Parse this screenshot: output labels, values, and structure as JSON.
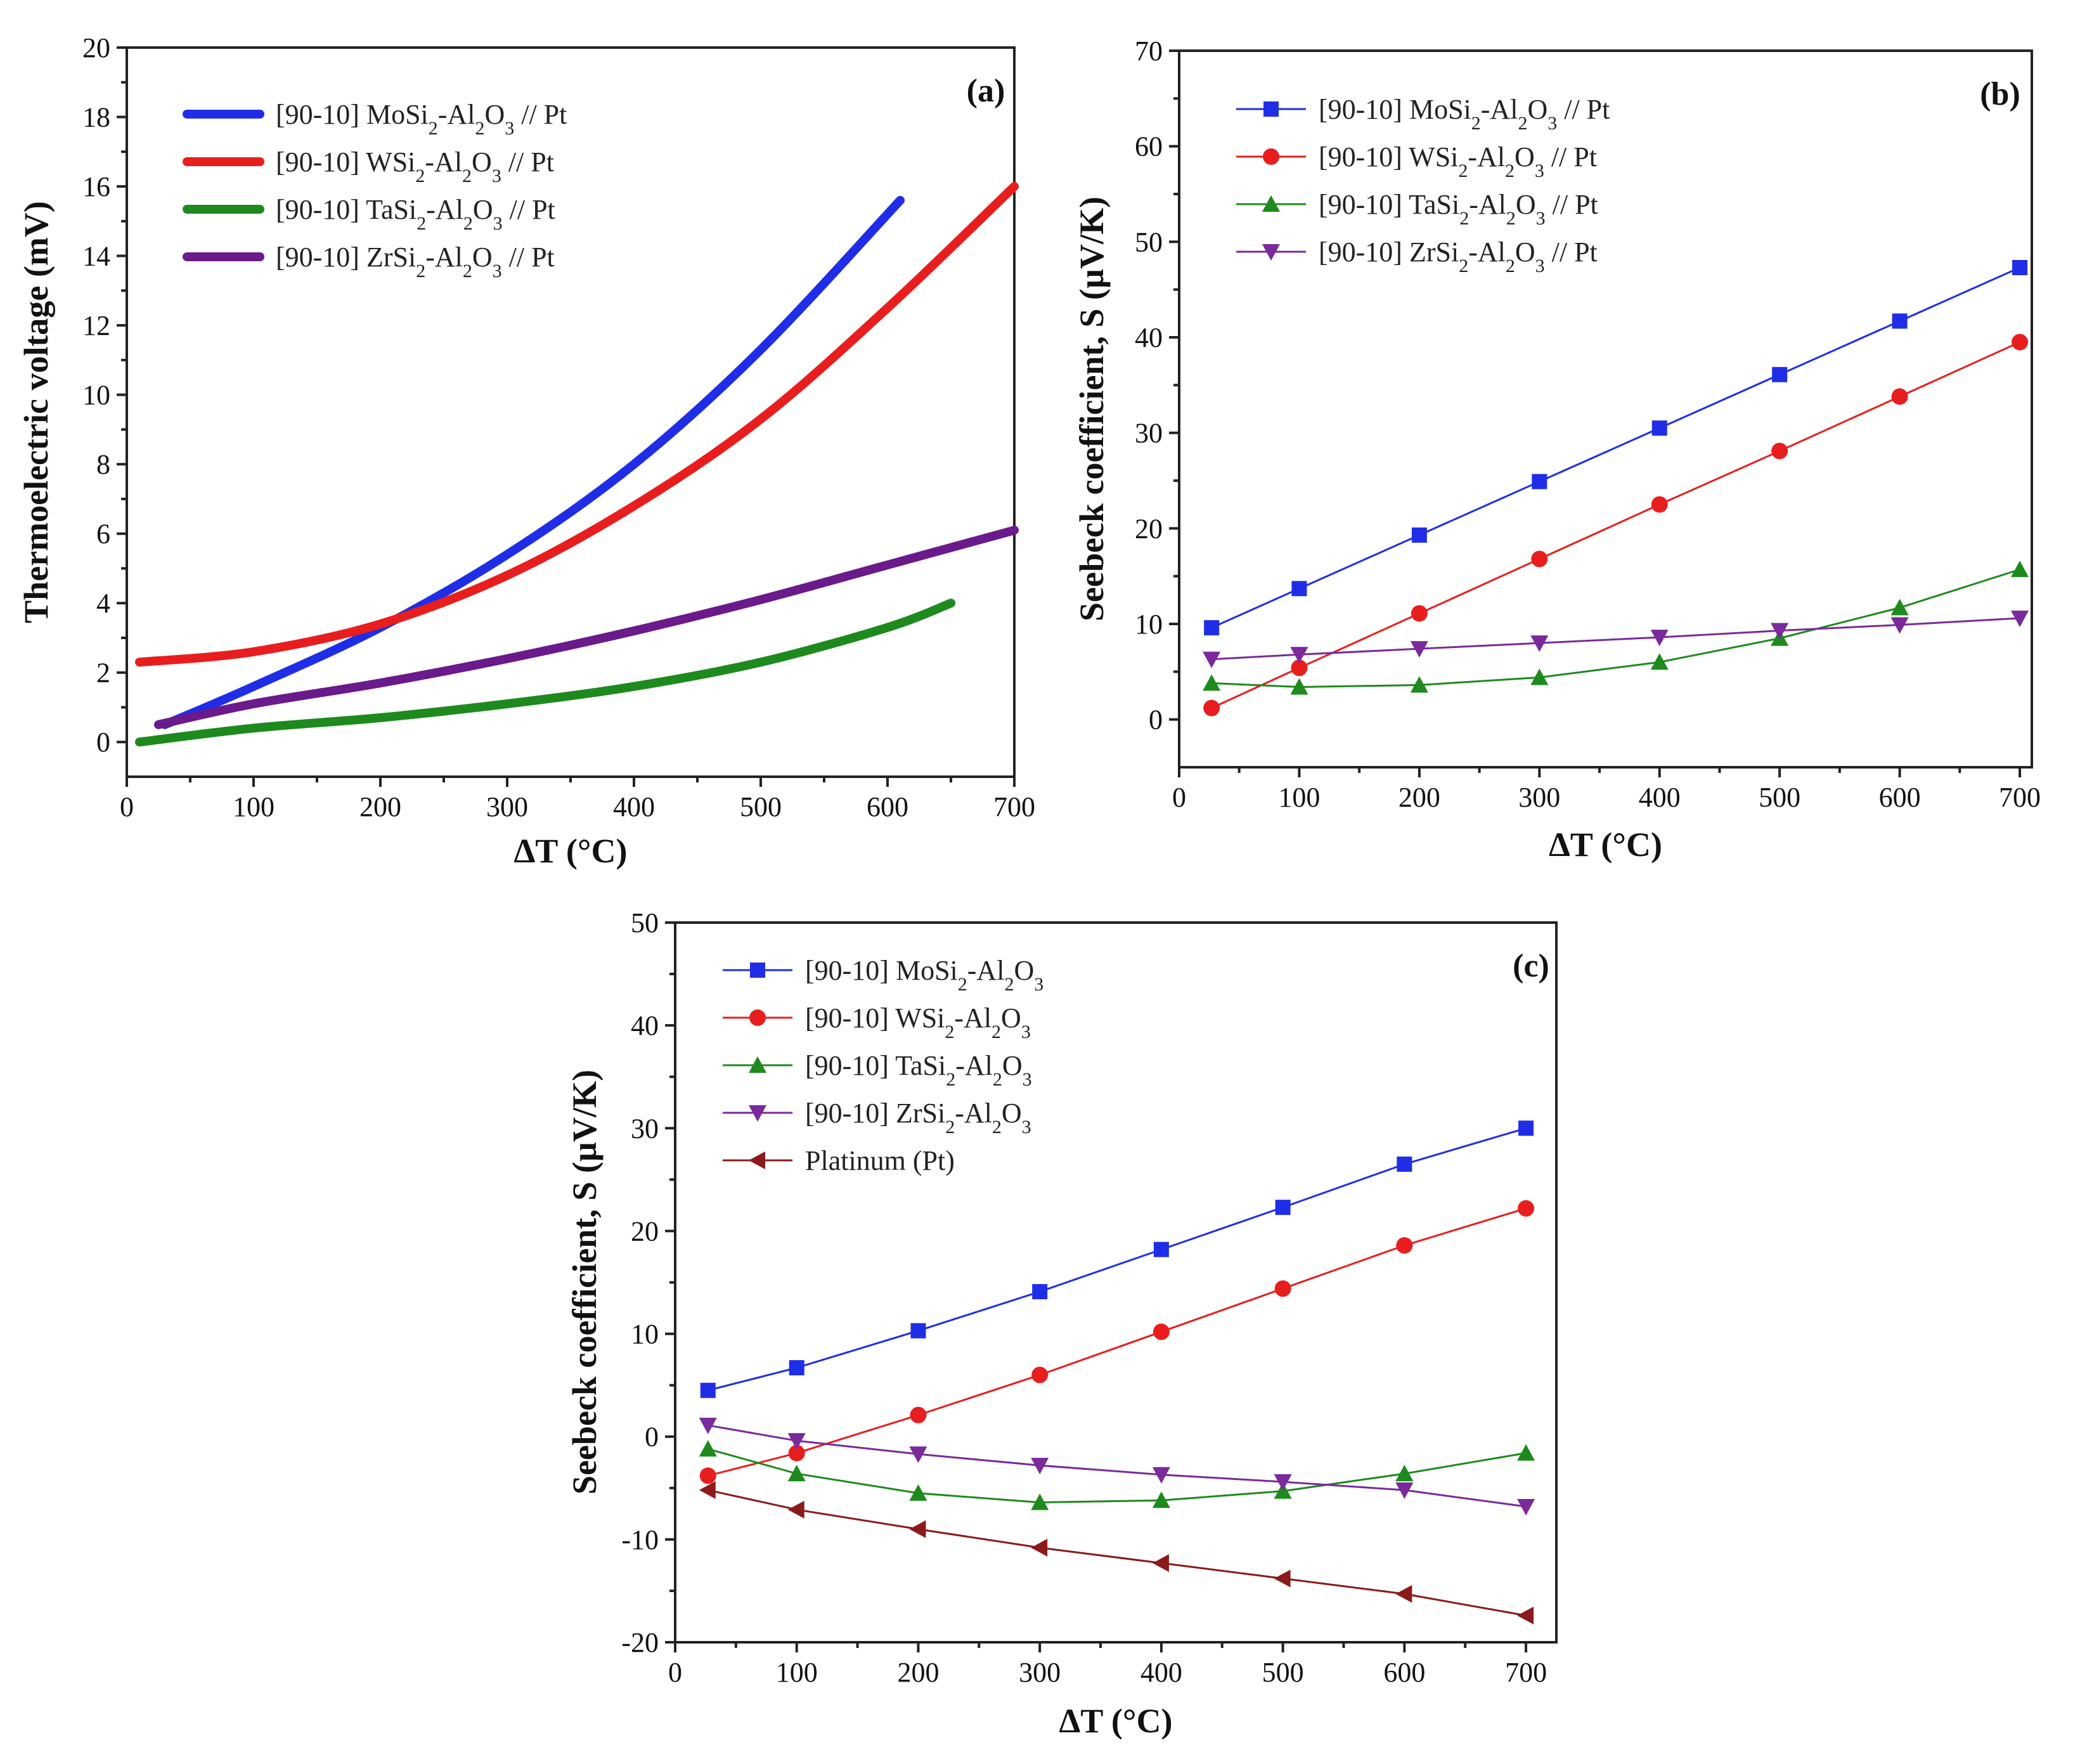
{
  "chart_data": [
    {
      "panel": "(a)",
      "type": "line",
      "xlabel": "ΔT (°C)",
      "ylabel": "Thermoelectric voltage (mV)",
      "xlim": [
        0,
        700
      ],
      "ylim": [
        -1,
        20
      ],
      "xticks": [
        "0",
        "100",
        "200",
        "300",
        "400",
        "500",
        "600",
        "700"
      ],
      "yticks": [
        "0",
        "2",
        "4",
        "6",
        "8",
        "10",
        "12",
        "14",
        "16",
        "18",
        "20"
      ],
      "legend_position": "top-left",
      "series": [
        {
          "name": "[90-10] MoSi2-Al2O3 // Pt",
          "name_parts": [
            [
              "[90-10] MoSi",
              ""
            ],
            [
              "2",
              "sub"
            ],
            [
              "-Al",
              ""
            ],
            [
              "2",
              "sub"
            ],
            [
              "O",
              ""
            ],
            [
              "3",
              "sub"
            ],
            [
              " // Pt",
              ""
            ]
          ],
          "color": "#1f2ee6",
          "x": [
            30,
            100,
            200,
            300,
            400,
            500,
            610
          ],
          "y": [
            0.5,
            1.6,
            3.3,
            5.4,
            8.0,
            11.3,
            15.6
          ]
        },
        {
          "name": "[90-10] WSi2-Al2O3 // Pt",
          "name_parts": [
            [
              "[90-10] WSi",
              ""
            ],
            [
              "2",
              "sub"
            ],
            [
              "-Al",
              ""
            ],
            [
              "2",
              "sub"
            ],
            [
              "O",
              ""
            ],
            [
              "3",
              "sub"
            ],
            [
              "  // Pt",
              ""
            ]
          ],
          "color": "#e81e1e",
          "x": [
            10,
            100,
            200,
            300,
            400,
            500,
            600,
            700
          ],
          "y": [
            2.3,
            2.6,
            3.4,
            4.8,
            6.8,
            9.3,
            12.5,
            16.0
          ]
        },
        {
          "name": "[90-10] TaSi2-Al2O3 // Pt",
          "name_parts": [
            [
              "[90-10] TaSi",
              ""
            ],
            [
              "2",
              "sub"
            ],
            [
              "-Al",
              ""
            ],
            [
              "2",
              "sub"
            ],
            [
              "O",
              ""
            ],
            [
              "3",
              "sub"
            ],
            [
              " // Pt",
              ""
            ]
          ],
          "color": "#1e8a1e",
          "x": [
            10,
            100,
            200,
            300,
            400,
            500,
            600,
            650
          ],
          "y": [
            0.0,
            0.4,
            0.7,
            1.1,
            1.6,
            2.3,
            3.3,
            4.0
          ]
        },
        {
          "name": "[90-10] ZrSi2-Al2O3 // Pt",
          "name_parts": [
            [
              "[90-10] ZrSi",
              ""
            ],
            [
              "2",
              "sub"
            ],
            [
              "-Al",
              ""
            ],
            [
              "2",
              "sub"
            ],
            [
              "O",
              ""
            ],
            [
              "3",
              "sub"
            ],
            [
              " // Pt",
              ""
            ]
          ],
          "color": "#6a1a8a",
          "x": [
            25,
            100,
            200,
            300,
            400,
            500,
            600,
            700
          ],
          "y": [
            0.5,
            1.1,
            1.7,
            2.4,
            3.2,
            4.1,
            5.1,
            6.1
          ]
        }
      ]
    },
    {
      "panel": "(b)",
      "type": "line",
      "xlabel": "ΔT (°C)",
      "ylabel": "Seebeck coefficient, S (µV/K)",
      "xlim": [
        0,
        710
      ],
      "ylim": [
        -5,
        70
      ],
      "xticks": [
        "0",
        "100",
        "200",
        "300",
        "400",
        "500",
        "600",
        "700"
      ],
      "yticks": [
        "0",
        "10",
        "20",
        "30",
        "40",
        "50",
        "60",
        "70"
      ],
      "legend_position": "top-left",
      "series": [
        {
          "name": "[90-10] MoSi2-Al2O3 // Pt",
          "name_parts": [
            [
              "[90-10] MoSi",
              ""
            ],
            [
              "2",
              "sub"
            ],
            [
              "-Al",
              ""
            ],
            [
              "2",
              "sub"
            ],
            [
              "O",
              ""
            ],
            [
              "3",
              "sub"
            ],
            [
              " // Pt",
              ""
            ]
          ],
          "color": "#1f2ee6",
          "marker": "square",
          "x": [
            27,
            100,
            200,
            300,
            400,
            500,
            600,
            700
          ],
          "y": [
            9.6,
            13.7,
            19.3,
            24.9,
            30.5,
            36.1,
            41.7,
            47.3
          ]
        },
        {
          "name": "[90-10] WSi2-Al2O3 // Pt",
          "name_parts": [
            [
              "[90-10] WSi",
              ""
            ],
            [
              "2",
              "sub"
            ],
            [
              "-Al",
              ""
            ],
            [
              "2",
              "sub"
            ],
            [
              "O",
              ""
            ],
            [
              "3",
              "sub"
            ],
            [
              "  // Pt",
              ""
            ]
          ],
          "color": "#e81e1e",
          "marker": "circle",
          "x": [
            27,
            100,
            200,
            300,
            400,
            500,
            600,
            700
          ],
          "y": [
            1.2,
            5.4,
            11.1,
            16.8,
            22.5,
            28.1,
            33.8,
            39.5
          ]
        },
        {
          "name": "[90-10] TaSi2-Al2O3 // Pt",
          "name_parts": [
            [
              "[90-10] TaSi",
              ""
            ],
            [
              "2",
              "sub"
            ],
            [
              "-Al",
              ""
            ],
            [
              "2",
              "sub"
            ],
            [
              "O",
              ""
            ],
            [
              "3",
              "sub"
            ],
            [
              " // Pt",
              ""
            ]
          ],
          "color": "#1e8a1e",
          "marker": "triangle-up",
          "x": [
            27,
            100,
            200,
            300,
            400,
            500,
            600,
            700
          ],
          "y": [
            3.8,
            3.4,
            3.6,
            4.4,
            6.0,
            8.5,
            11.7,
            15.7
          ]
        },
        {
          "name": "[90-10] ZrSi2-Al2O3 // Pt",
          "name_parts": [
            [
              "[90-10] ZrSi",
              ""
            ],
            [
              "2",
              "sub"
            ],
            [
              "-Al",
              ""
            ],
            [
              "2",
              "sub"
            ],
            [
              "O",
              ""
            ],
            [
              "3",
              "sub"
            ],
            [
              " // Pt",
              ""
            ]
          ],
          "color": "#7a2a9a",
          "marker": "triangle-down",
          "x": [
            27,
            100,
            200,
            300,
            400,
            500,
            600,
            700
          ],
          "y": [
            6.3,
            6.8,
            7.4,
            8.0,
            8.6,
            9.3,
            9.9,
            10.6
          ]
        }
      ]
    },
    {
      "panel": "(c)",
      "type": "line",
      "xlabel": "ΔT (°C)",
      "ylabel": "Seebeck coefficient, S (µV/K)",
      "xlim": [
        0,
        725
      ],
      "ylim": [
        -20,
        50
      ],
      "xticks": [
        "0",
        "100",
        "200",
        "300",
        "400",
        "500",
        "600",
        "700"
      ],
      "yticks": [
        "-20",
        "-10",
        "0",
        "10",
        "20",
        "30",
        "40",
        "50"
      ],
      "legend_position": "top-left",
      "series": [
        {
          "name": "[90-10] MoSi2-Al2O3",
          "name_parts": [
            [
              "[90-10] MoSi",
              ""
            ],
            [
              "2",
              "sub"
            ],
            [
              "-Al",
              ""
            ],
            [
              "2",
              "sub"
            ],
            [
              "O",
              ""
            ],
            [
              "3",
              "sub"
            ]
          ],
          "color": "#1f2ee6",
          "marker": "square",
          "x": [
            27,
            100,
            200,
            300,
            400,
            500,
            600,
            700
          ],
          "y": [
            4.5,
            6.7,
            10.3,
            14.1,
            18.2,
            22.3,
            26.5,
            30.0
          ]
        },
        {
          "name": "[90-10] WSi2-Al2O3",
          "name_parts": [
            [
              "[90-10] WSi",
              ""
            ],
            [
              "2",
              "sub"
            ],
            [
              "-Al",
              ""
            ],
            [
              "2",
              "sub"
            ],
            [
              "O",
              ""
            ],
            [
              "3",
              "sub"
            ]
          ],
          "color": "#e81e1e",
          "marker": "circle",
          "x": [
            27,
            100,
            200,
            300,
            400,
            500,
            600,
            700
          ],
          "y": [
            -3.8,
            -1.6,
            2.1,
            6.0,
            10.2,
            14.4,
            18.6,
            22.2
          ]
        },
        {
          "name": "[90-10] TaSi2-Al2O3",
          "name_parts": [
            [
              "[90-10] TaSi",
              ""
            ],
            [
              "2",
              "sub"
            ],
            [
              "-Al",
              ""
            ],
            [
              "2",
              "sub"
            ],
            [
              "O",
              ""
            ],
            [
              "3",
              "sub"
            ]
          ],
          "color": "#1e8a1e",
          "marker": "triangle-up",
          "x": [
            27,
            100,
            200,
            300,
            400,
            500,
            600,
            700
          ],
          "y": [
            -1.2,
            -3.6,
            -5.5,
            -6.4,
            -6.2,
            -5.3,
            -3.6,
            -1.6
          ]
        },
        {
          "name": "[90-10] ZrSi2-Al2O3",
          "name_parts": [
            [
              "[90-10] ZrSi",
              ""
            ],
            [
              "2",
              "sub"
            ],
            [
              "-Al",
              ""
            ],
            [
              "2",
              "sub"
            ],
            [
              "O",
              ""
            ],
            [
              "3",
              "sub"
            ]
          ],
          "color": "#7a2a9a",
          "marker": "triangle-down",
          "x": [
            27,
            100,
            200,
            300,
            400,
            500,
            600,
            700
          ],
          "y": [
            1.1,
            -0.4,
            -1.7,
            -2.8,
            -3.7,
            -4.4,
            -5.2,
            -6.8
          ]
        },
        {
          "name": "Platinum (Pt)",
          "name_parts": [
            [
              "Platinum (Pt)",
              ""
            ]
          ],
          "color": "#8b1a1a",
          "marker": "triangle-left",
          "x": [
            27,
            100,
            200,
            300,
            400,
            500,
            600,
            700
          ],
          "y": [
            -5.2,
            -7.1,
            -9.0,
            -10.8,
            -12.3,
            -13.8,
            -15.3,
            -17.4
          ]
        }
      ]
    }
  ]
}
